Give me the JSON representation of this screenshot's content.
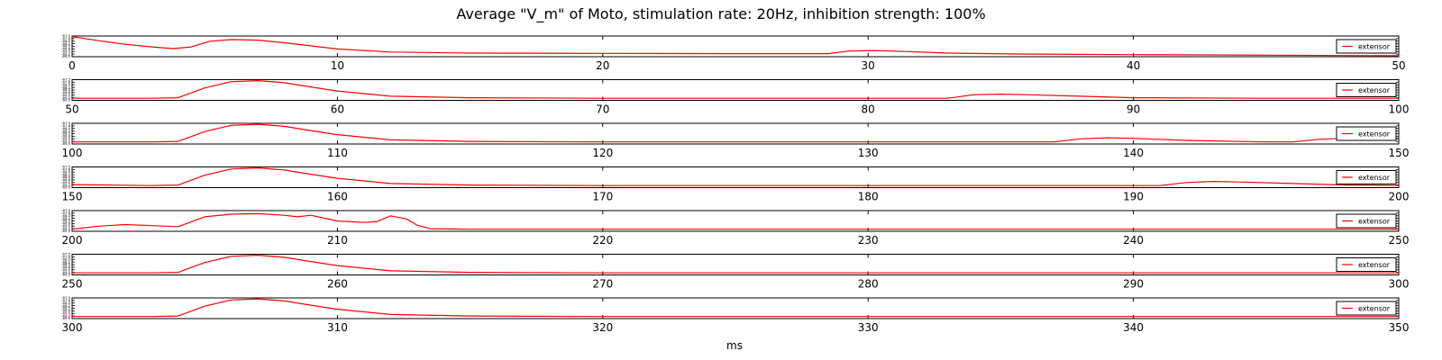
{
  "title": "Average \"V_m\" of Moto, stimulation rate: 20Hz, inhibition strength: 100%",
  "chart_data": {
    "type": "line",
    "title": "Average \"V_m\" of Moto, stimulation rate: 20Hz, inhibition strength: 100%",
    "xlabel": "ms",
    "ylabel": "",
    "grid": false,
    "legend_placement": "right",
    "line_color": "#ff0000",
    "panels": [
      {
        "xlim": [
          0,
          50
        ],
        "ylim": [
          -69.5,
          -67.5
        ],
        "xticks": [
          0,
          10,
          20,
          30,
          40,
          50
        ],
        "yticks": [
          "-67.5",
          "-67.8",
          "-68.0",
          "-68.2",
          "-68.5",
          "-68.8",
          "-69.0",
          "-69.2",
          "-69.5"
        ],
        "series": [
          {
            "name": "extensor",
            "x": [
              0,
              1,
              2,
              3,
              3.8,
              4.5,
              5.2,
              6,
              7,
              8,
              10,
              12,
              15,
              20,
              25,
              28.5,
              29.3,
              30.2,
              31.5,
              33,
              36,
              40,
              45,
              50
            ],
            "y": [
              -67.55,
              -67.95,
              -68.3,
              -68.55,
              -68.72,
              -68.55,
              -68.0,
              -67.85,
              -67.9,
              -68.15,
              -68.75,
              -69.05,
              -69.15,
              -69.18,
              -69.2,
              -69.2,
              -68.95,
              -68.9,
              -69.0,
              -69.15,
              -69.25,
              -69.3,
              -69.35,
              -69.4
            ]
          }
        ]
      },
      {
        "xlim": [
          50,
          100
        ],
        "ylim": [
          -69.5,
          -67.5
        ],
        "xticks": [
          50,
          60,
          70,
          80,
          90,
          100
        ],
        "yticks": [
          "-67.5",
          "-67.8",
          "-68.0",
          "-68.2",
          "-68.5",
          "-68.8",
          "-69.0",
          "-69.2",
          "-69.5"
        ],
        "series": [
          {
            "name": "extensor",
            "x": [
              50,
              53,
              54,
              55,
              56,
              57,
              58,
              59,
              60,
              62,
              65,
              70,
              75,
              83,
              84,
              85,
              86,
              88,
              90,
              95,
              100
            ],
            "y": [
              -69.3,
              -69.3,
              -69.25,
              -68.3,
              -67.7,
              -67.6,
              -67.8,
              -68.2,
              -68.6,
              -69.1,
              -69.25,
              -69.3,
              -69.3,
              -69.3,
              -68.95,
              -68.9,
              -68.95,
              -69.1,
              -69.25,
              -69.3,
              -69.3
            ]
          }
        ]
      },
      {
        "xlim": [
          100,
          150
        ],
        "ylim": [
          -69.5,
          -67.5
        ],
        "xticks": [
          100,
          110,
          120,
          130,
          140,
          150
        ],
        "yticks": [
          "-67.5",
          "-67.8",
          "-68.0",
          "-68.2",
          "-68.5",
          "-68.8",
          "-69.0",
          "-69.2",
          "-69.5"
        ],
        "series": [
          {
            "name": "extensor",
            "x": [
              100,
              103,
              104,
              105,
              106,
              107,
              108,
              109,
              110,
              112,
              115,
              120,
              125,
              131,
              137,
              138,
              139,
              140,
              142,
              145,
              146,
              147,
              148,
              150
            ],
            "y": [
              -69.3,
              -69.3,
              -69.25,
              -68.3,
              -67.7,
              -67.6,
              -67.8,
              -68.2,
              -68.6,
              -69.1,
              -69.25,
              -69.3,
              -69.3,
              -69.3,
              -69.3,
              -69.0,
              -68.9,
              -68.95,
              -69.15,
              -69.3,
              -69.3,
              -69.05,
              -68.95,
              -68.95
            ]
          }
        ]
      },
      {
        "xlim": [
          150,
          200
        ],
        "ylim": [
          -69.5,
          -67.5
        ],
        "xticks": [
          150,
          160,
          170,
          180,
          190,
          200
        ],
        "yticks": [
          "-67.5",
          "-67.8",
          "-68.0",
          "-68.2",
          "-68.5",
          "-68.8",
          "-69.0",
          "-69.2",
          "-69.5"
        ],
        "series": [
          {
            "name": "extensor",
            "x": [
              150,
              153,
              154,
              155,
              156,
              157,
              158,
              159,
              160,
              162,
              165,
              170,
              180,
              191,
              192,
              193,
              194,
              196,
              198,
              200
            ],
            "y": [
              -69.2,
              -69.3,
              -69.25,
              -68.3,
              -67.7,
              -67.6,
              -67.8,
              -68.2,
              -68.6,
              -69.1,
              -69.25,
              -69.3,
              -69.3,
              -69.3,
              -69.0,
              -68.9,
              -68.95,
              -69.1,
              -69.25,
              -69.3
            ]
          }
        ]
      },
      {
        "xlim": [
          200,
          250
        ],
        "ylim": [
          -69.5,
          -67.5
        ],
        "xticks": [
          200,
          210,
          220,
          230,
          240,
          250
        ],
        "yticks": [
          "-67.5",
          "-67.8",
          "-68.0",
          "-68.2",
          "-68.5",
          "-68.8",
          "-69.0",
          "-69.2",
          "-69.5"
        ],
        "series": [
          {
            "name": "extensor",
            "x": [
              200,
              201,
              202,
              203,
              204,
              205,
              206,
              207,
              208,
              208.5,
              209,
              210,
              211,
              211.5,
              212,
              212.6,
              213,
              213.5,
              215,
              220,
              230,
              240,
              250
            ],
            "y": [
              -69.3,
              -69.0,
              -68.85,
              -68.95,
              -69.05,
              -68.1,
              -67.85,
              -67.8,
              -67.95,
              -68.1,
              -67.95,
              -68.5,
              -68.65,
              -68.55,
              -68.0,
              -68.3,
              -68.9,
              -69.25,
              -69.3,
              -69.3,
              -69.3,
              -69.3,
              -69.3
            ]
          }
        ]
      },
      {
        "xlim": [
          250,
          300
        ],
        "ylim": [
          -69.5,
          -67.5
        ],
        "xticks": [
          250,
          260,
          270,
          280,
          290,
          300
        ],
        "yticks": [
          "-67.5",
          "-67.8",
          "-68.0",
          "-68.2",
          "-68.5",
          "-68.8",
          "-69.0",
          "-69.2",
          "-69.5"
        ],
        "series": [
          {
            "name": "extensor",
            "x": [
              250,
              253,
              254,
              255,
              256,
              257,
              258,
              259,
              260,
              262,
              265,
              270,
              280,
              290,
              300
            ],
            "y": [
              -69.3,
              -69.3,
              -69.25,
              -68.3,
              -67.7,
              -67.6,
              -67.8,
              -68.2,
              -68.6,
              -69.1,
              -69.25,
              -69.3,
              -69.3,
              -69.3,
              -69.3
            ]
          }
        ]
      },
      {
        "xlim": [
          300,
          350
        ],
        "ylim": [
          -69.5,
          -67.5
        ],
        "xticks": [
          300,
          310,
          320,
          330,
          340,
          350
        ],
        "yticks": [
          "-67.5",
          "-67.8",
          "-68.0",
          "-68.2",
          "-68.5",
          "-68.8",
          "-69.0",
          "-69.2",
          "-69.5"
        ],
        "series": [
          {
            "name": "extensor",
            "x": [
              300,
              303,
              304,
              305,
              306,
              307,
              308,
              309,
              310,
              312,
              315,
              320,
              330,
              340,
              350
            ],
            "y": [
              -69.3,
              -69.3,
              -69.25,
              -68.3,
              -67.7,
              -67.6,
              -67.8,
              -68.2,
              -68.6,
              -69.1,
              -69.25,
              -69.3,
              -69.3,
              -69.3,
              -69.3
            ]
          }
        ]
      }
    ]
  }
}
